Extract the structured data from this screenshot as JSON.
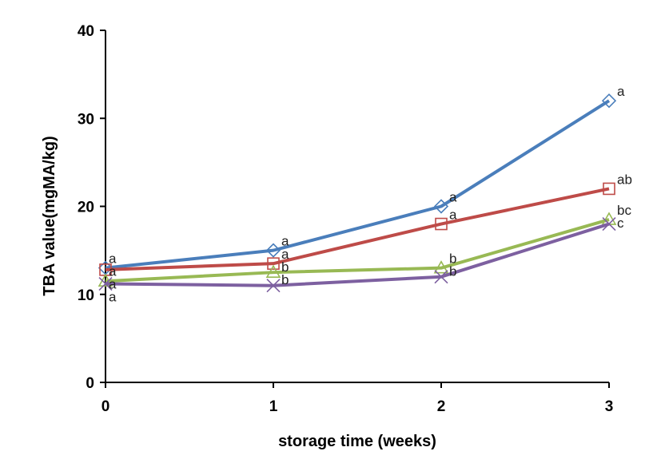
{
  "chart_data": {
    "type": "line",
    "xlabel": "storage time (weeks)",
    "ylabel": "TBA value(mgMA/kg)",
    "x": [
      0,
      1,
      2,
      3
    ],
    "xticks": [
      "0",
      "1",
      "2",
      "3"
    ],
    "yticks": [
      "0",
      "10",
      "20",
      "30",
      "40"
    ],
    "xlim": [
      0,
      3
    ],
    "ylim": [
      0,
      40
    ],
    "grid": false,
    "series": [
      {
        "color": "#4a7ebb",
        "marker": "diamond",
        "values": [
          13.0,
          15.0,
          20.0,
          32.0
        ],
        "letters": [
          "a",
          "a",
          "a",
          "a"
        ]
      },
      {
        "color": "#be4b48",
        "marker": "square",
        "values": [
          12.8,
          13.5,
          18.0,
          22.0
        ],
        "letters": [
          "a",
          "a",
          "a",
          "ab"
        ]
      },
      {
        "color": "#98b954",
        "marker": "triangle",
        "values": [
          11.5,
          12.5,
          13.0,
          18.5
        ],
        "letters": [
          "a",
          "b",
          "b",
          "bc"
        ]
      },
      {
        "color": "#7d60a0",
        "marker": "x",
        "values": [
          11.2,
          11.0,
          12.0,
          18.0
        ],
        "letters": [
          "a",
          "b",
          "b",
          "c"
        ]
      }
    ]
  }
}
